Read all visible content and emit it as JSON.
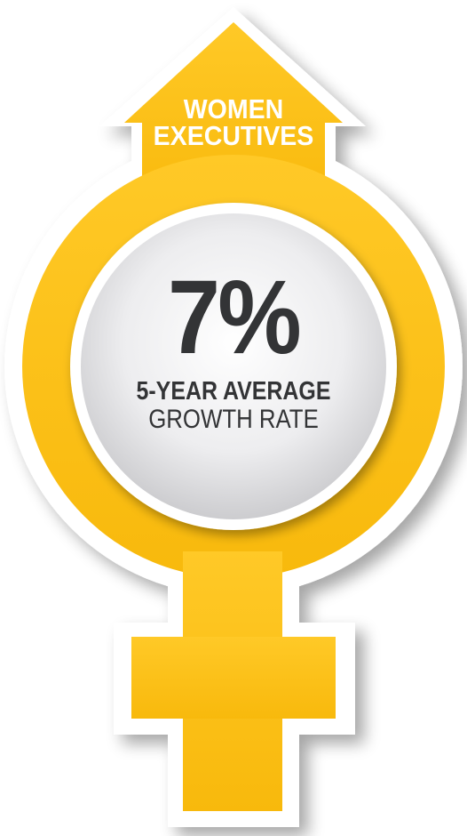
{
  "symbol": {
    "icon": "female-venus-symbol-with-up-arrow",
    "colors": {
      "gold": "#FFC20E",
      "gold_dark": "#F2A900",
      "white_outline": "#FFFFFF",
      "inner_circle": "#E9E9EB",
      "text_dark": "#333436",
      "text_light": "#FFFFFF"
    }
  },
  "header": {
    "line1": "WOMEN",
    "line2": "EXECUTIVES"
  },
  "stat": {
    "value": "7%",
    "label_bold": "5-YEAR AVERAGE",
    "label_regular": "GROWTH RATE"
  }
}
